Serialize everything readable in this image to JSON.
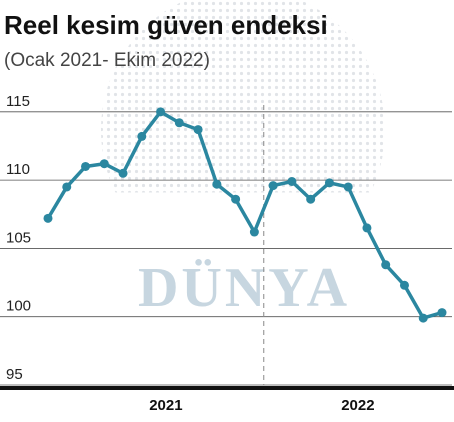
{
  "chart_data": {
    "type": "line",
    "title": "Reel kesim güven endeksi",
    "subtitle": "(Ocak 2021- Ekim 2022)",
    "watermark": "DÜNYA",
    "categories": [
      null,
      null,
      null,
      null,
      null,
      null,
      null,
      null,
      null,
      null,
      null,
      null,
      null,
      null,
      null,
      null,
      null,
      null,
      null,
      null,
      null,
      null
    ],
    "year_labels": [
      "2021",
      "2022"
    ],
    "series": [
      {
        "name": null,
        "color": "#2b87a0",
        "values": [
          107.2,
          109.5,
          111.0,
          111.2,
          110.5,
          113.2,
          115.0,
          114.2,
          113.7,
          109.7,
          108.6,
          106.2,
          109.6,
          109.9,
          108.6,
          109.8,
          109.5,
          106.5,
          103.8,
          102.3,
          99.9,
          100.3
        ]
      }
    ],
    "ylim": [
      95,
      115.5
    ],
    "yticks": [
      95,
      100,
      105,
      110,
      115
    ],
    "grid": true
  }
}
